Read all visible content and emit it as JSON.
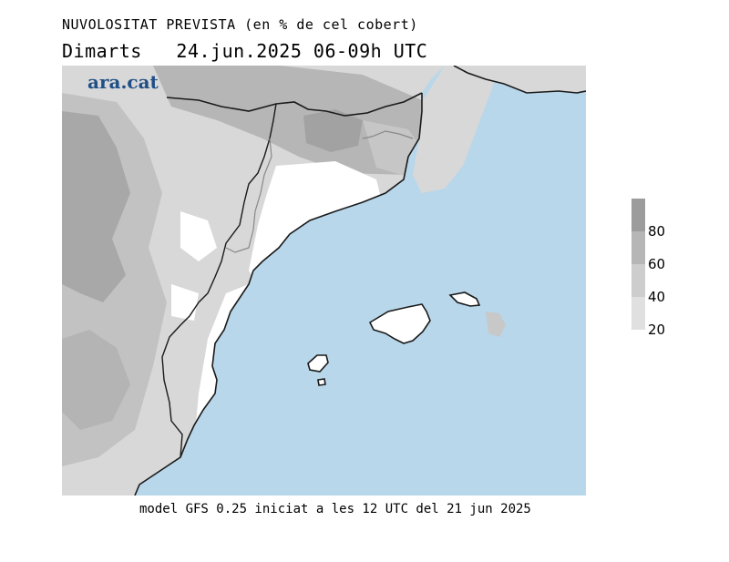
{
  "title": {
    "line1": "NUVOLOSITAT PREVISTA (en % de cel cobert)",
    "line2": "Dimarts   24.jun.2025 06-09h UTC"
  },
  "logo": "ara.cat",
  "legend": {
    "labels": [
      "80",
      "60",
      "40",
      "20"
    ],
    "colors": [
      "#9c9c9c",
      "#b6b6b6",
      "#cdcdcd",
      "#e0e0e0"
    ]
  },
  "footer": "model GFS 0.25 iniciat a les 12 UTC del 21 jun 2025",
  "colors": {
    "sea": "#b8d7ea",
    "land_clear": "#ffffff",
    "coastline": "#1a1a1a",
    "border": "#888888"
  }
}
